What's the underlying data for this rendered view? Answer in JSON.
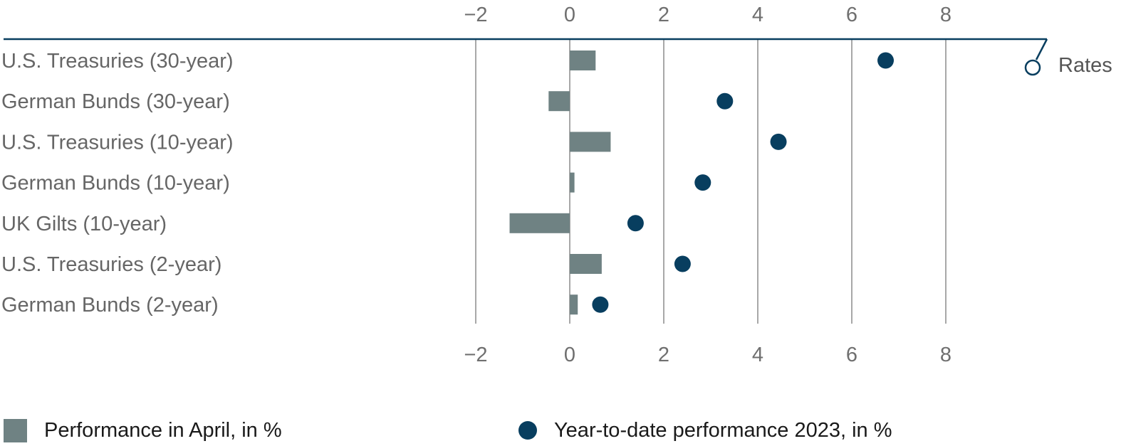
{
  "chart_data": {
    "type": "bar",
    "categories": [
      "U.S. Treasuries (30-year)",
      "German Bunds (30-year)",
      "U.S. Treasuries (10-year)",
      "German Bunds (10-year)",
      "UK Gilts (10-year)",
      "U.S. Treasuries (2-year)",
      "German Bunds (2-year)"
    ],
    "series": [
      {
        "name": "Performance in April, in %",
        "kind": "bar",
        "color": "#6f8283",
        "values": [
          0.55,
          -0.45,
          0.87,
          0.1,
          -1.28,
          0.68,
          0.17
        ]
      },
      {
        "name": "Year-to-date performance 2023, in %",
        "kind": "dot",
        "color": "#083e5f",
        "values": [
          6.72,
          3.3,
          4.44,
          2.83,
          1.4,
          2.4,
          0.65
        ]
      }
    ],
    "xlim": [
      -2,
      9.6
    ],
    "xticks": [
      -2,
      0,
      2,
      4,
      6,
      8
    ],
    "xtick_labels": [
      "−2",
      "0",
      "2",
      "4",
      "6",
      "8"
    ],
    "grid": true,
    "tag_label": "Rates",
    "legend_position": "bottom"
  }
}
